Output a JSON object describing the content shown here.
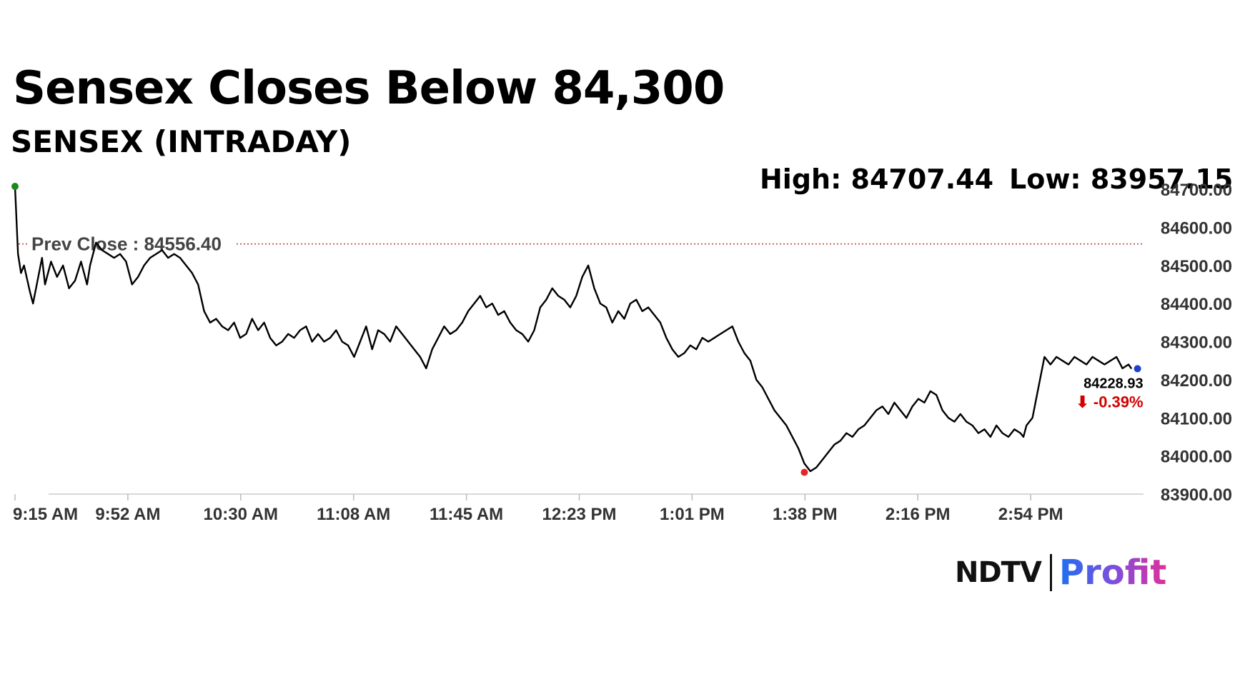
{
  "header": {
    "title": "Sensex Closes Below 84,300",
    "subtitle": "SENSEX (INTRADAY)"
  },
  "stats": {
    "high_text": "High: 84707.44",
    "low_text": "Low: 83957.15"
  },
  "prev_close": {
    "label": "Prev Close : 84556.40",
    "value": 84556.4
  },
  "last": {
    "value_text": "84228.93",
    "change_text": "⬇ -0.39%",
    "value": 84228.93
  },
  "logo": {
    "ndtv": "NDTV",
    "profit": "Profit"
  },
  "colors": {
    "line": "#000000",
    "prev_close": "#c0392b",
    "high_marker": "#1a8a1a",
    "low_marker": "#e3262c",
    "last_marker": "#1f3fd0",
    "change": "#d40000"
  },
  "chart_data": {
    "type": "line",
    "title": "SENSEX (INTRADAY)",
    "xlabel": "",
    "ylabel": "",
    "ylim": [
      83900,
      84700
    ],
    "yticks": [
      84700,
      84600,
      84500,
      84400,
      84300,
      84200,
      84100,
      84000,
      83900
    ],
    "ytick_labels": [
      "84700.00",
      "84600.00",
      "84500.00",
      "84400.00",
      "84300.00",
      "84200.00",
      "84100.00",
      "84000.00",
      "83900.00"
    ],
    "xlim_minutes": [
      555,
      931
    ],
    "xtick_labels": [
      "9:15 AM",
      "9:52 AM",
      "10:30 AM",
      "11:08 AM",
      "11:45 AM",
      "12:23 PM",
      "1:01 PM",
      "1:38 PM",
      "2:16 PM",
      "2:54 PM"
    ],
    "xtick_minutes": [
      555,
      592.6,
      630.2,
      667.8,
      705.4,
      743,
      780.6,
      818.2,
      855.8,
      893.4
    ],
    "grid": false,
    "series": [
      {
        "time_minutes": [
          555,
          556,
          557,
          558,
          560,
          561,
          562,
          564,
          565,
          567,
          569,
          571,
          573,
          575,
          577,
          579,
          580,
          582,
          584,
          586,
          588,
          590,
          592,
          594,
          596,
          598,
          600,
          602,
          604,
          606,
          608,
          610,
          612,
          614,
          616,
          618,
          620,
          622,
          624,
          626,
          628,
          630,
          632,
          634,
          636,
          638,
          640,
          642,
          644,
          646,
          648,
          650,
          652,
          654,
          656,
          658,
          660,
          662,
          664,
          666,
          668,
          670,
          672,
          674,
          676,
          678,
          680,
          682,
          684,
          686,
          688,
          690,
          692,
          694,
          696,
          698,
          700,
          702,
          704,
          706,
          708,
          710,
          712,
          714,
          716,
          718,
          720,
          722,
          724,
          726,
          728,
          730,
          732,
          734,
          736,
          738,
          740,
          742,
          744,
          746,
          748,
          750,
          752,
          754,
          756,
          758,
          760,
          762,
          764,
          766,
          768,
          770,
          772,
          774,
          776,
          778,
          780,
          782,
          784,
          786,
          788,
          790,
          792,
          794,
          796,
          798,
          800,
          802,
          804,
          806,
          808,
          810,
          812,
          814,
          816,
          818,
          820,
          822,
          824,
          826,
          828,
          830,
          832,
          834,
          836,
          838,
          840,
          842,
          844,
          846,
          848,
          850,
          852,
          854,
          856,
          858,
          860,
          862,
          864,
          866,
          868,
          870,
          872,
          874,
          876,
          878,
          880,
          882,
          884,
          886,
          888,
          890,
          891,
          892,
          894,
          896,
          898,
          900,
          902,
          904,
          906,
          908,
          910,
          912,
          914,
          916,
          918,
          920,
          922,
          924,
          926,
          927,
          929
        ],
        "values": [
          84707,
          84530,
          84480,
          84500,
          84430,
          84400,
          84440,
          84520,
          84450,
          84510,
          84470,
          84500,
          84440,
          84460,
          84510,
          84450,
          84500,
          84560,
          84540,
          84530,
          84520,
          84530,
          84510,
          84450,
          84470,
          84500,
          84520,
          84530,
          84540,
          84520,
          84530,
          84520,
          84500,
          84480,
          84450,
          84380,
          84350,
          84360,
          84340,
          84330,
          84350,
          84310,
          84320,
          84360,
          84330,
          84350,
          84310,
          84290,
          84300,
          84320,
          84310,
          84330,
          84340,
          84300,
          84320,
          84300,
          84310,
          84330,
          84300,
          84290,
          84260,
          84300,
          84340,
          84280,
          84330,
          84320,
          84300,
          84340,
          84320,
          84300,
          84280,
          84260,
          84230,
          84280,
          84310,
          84340,
          84320,
          84330,
          84350,
          84380,
          84400,
          84420,
          84390,
          84400,
          84370,
          84380,
          84350,
          84330,
          84320,
          84300,
          84330,
          84390,
          84410,
          84440,
          84420,
          84410,
          84390,
          84420,
          84470,
          84500,
          84440,
          84400,
          84390,
          84350,
          84380,
          84360,
          84400,
          84410,
          84380,
          84390,
          84370,
          84350,
          84310,
          84280,
          84260,
          84270,
          84290,
          84280,
          84310,
          84300,
          84310,
          84320,
          84330,
          84340,
          84300,
          84270,
          84250,
          84200,
          84180,
          84150,
          84120,
          84100,
          84080,
          84050,
          84020,
          83980,
          83960,
          83970,
          83990,
          84010,
          84030,
          84040,
          84060,
          84050,
          84070,
          84080,
          84100,
          84120,
          84130,
          84110,
          84140,
          84120,
          84100,
          84130,
          84150,
          84140,
          84170,
          84160,
          84120,
          84100,
          84090,
          84110,
          84090,
          84080,
          84060,
          84070,
          84050,
          84080,
          84060,
          84050,
          84070,
          84060,
          84050,
          84080,
          84100,
          84180,
          84260,
          84240,
          84260,
          84250,
          84240,
          84260,
          84250,
          84240,
          84260,
          84250,
          84240,
          84250,
          84260,
          84230,
          84240,
          84228.93
        ]
      }
    ],
    "markers": {
      "high": {
        "time_minutes": 555,
        "value": 84707.44
      },
      "low": {
        "time_minutes": 818,
        "value": 83957.15
      },
      "last": {
        "time_minutes": 929,
        "value": 84228.93
      }
    }
  }
}
